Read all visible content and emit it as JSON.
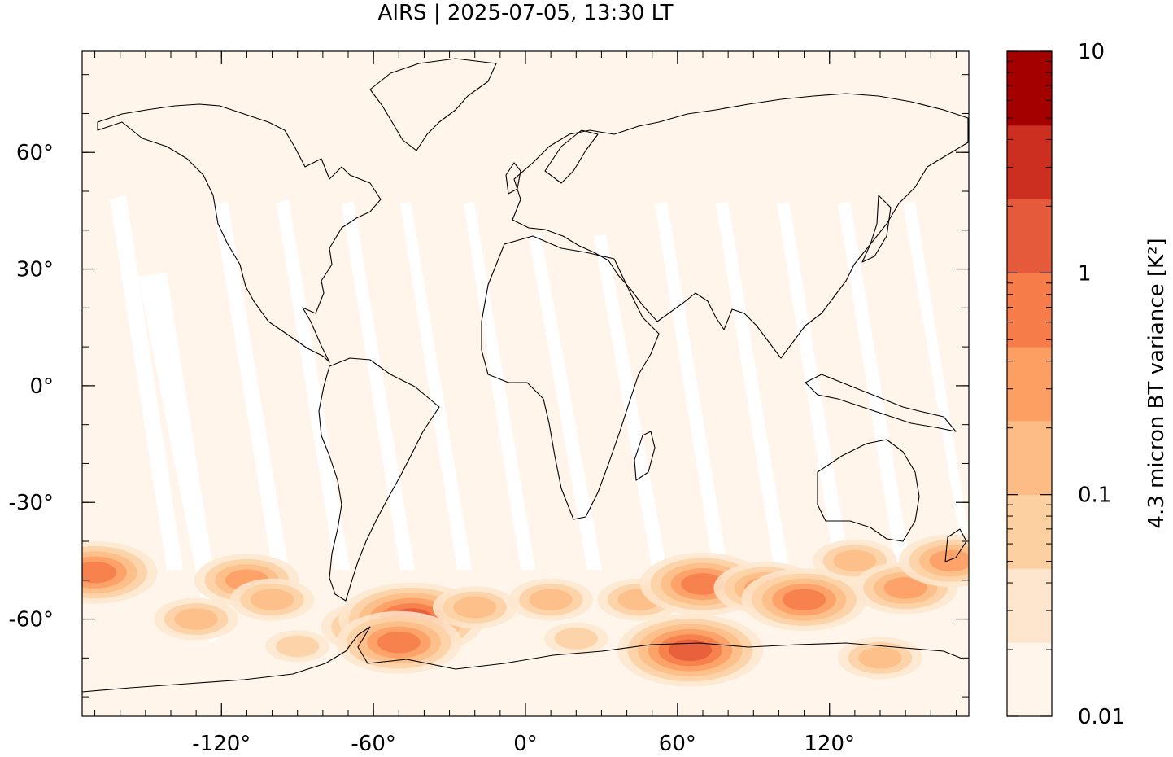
{
  "title": "AIRS | 2025-07-05, 13:30 LT",
  "map": {
    "x_ticks": [
      {
        "value": -120,
        "label": "-120°"
      },
      {
        "value": -60,
        "label": "-60°"
      },
      {
        "value": 0,
        "label": "0°"
      },
      {
        "value": 60,
        "label": "60°"
      },
      {
        "value": 120,
        "label": "120°"
      }
    ],
    "y_ticks": [
      {
        "value": 60,
        "label": "60°"
      },
      {
        "value": 30,
        "label": "30°"
      },
      {
        "value": 0,
        "label": "0°"
      },
      {
        "value": -30,
        "label": "-30°"
      },
      {
        "value": -60,
        "label": "-60°"
      }
    ],
    "lon_range": [
      -175,
      175
    ],
    "lat_range": [
      -85,
      86
    ],
    "background_color": "#fff5eb",
    "hotspots": [
      {
        "lon": -170,
        "lat": -48,
        "level": 5
      },
      {
        "lon": -110,
        "lat": -50,
        "level": 4
      },
      {
        "lon": -100,
        "lat": -55,
        "level": 3
      },
      {
        "lon": -60,
        "lat": -62,
        "level": 4
      },
      {
        "lon": -45,
        "lat": -60,
        "level": 6
      },
      {
        "lon": -50,
        "lat": -66,
        "level": 5
      },
      {
        "lon": -20,
        "lat": -57,
        "level": 3
      },
      {
        "lon": 10,
        "lat": -55,
        "level": 3
      },
      {
        "lon": 45,
        "lat": -55,
        "level": 3
      },
      {
        "lon": 65,
        "lat": -68,
        "level": 6
      },
      {
        "lon": 70,
        "lat": -51,
        "level": 5
      },
      {
        "lon": 95,
        "lat": -52,
        "level": 4
      },
      {
        "lon": 110,
        "lat": -55,
        "level": 5
      },
      {
        "lon": 130,
        "lat": -45,
        "level": 3
      },
      {
        "lon": 150,
        "lat": -52,
        "level": 4
      },
      {
        "lon": 168,
        "lat": -45,
        "level": 4
      },
      {
        "lon": -90,
        "lat": -67,
        "level": 2
      },
      {
        "lon": 20,
        "lat": -65,
        "level": 2
      },
      {
        "lon": 140,
        "lat": -70,
        "level": 3
      },
      {
        "lon": -130,
        "lat": -60,
        "level": 3
      }
    ]
  },
  "colorbar": {
    "label": "4.3 micron BT variance [K²]",
    "scale": "log",
    "range": [
      0.01,
      10
    ],
    "tick_labels": [
      {
        "value": 10,
        "label": "10"
      },
      {
        "value": 1,
        "label": "1"
      },
      {
        "value": 0.1,
        "label": "0.1"
      },
      {
        "value": 0.01,
        "label": "0.01"
      }
    ],
    "colors": [
      "#fff5eb",
      "#fee6ce",
      "#fdd0a2",
      "#fdbc85",
      "#fd9e63",
      "#f67c4a",
      "#e55a3a",
      "#cc2e1f",
      "#a50000"
    ]
  }
}
